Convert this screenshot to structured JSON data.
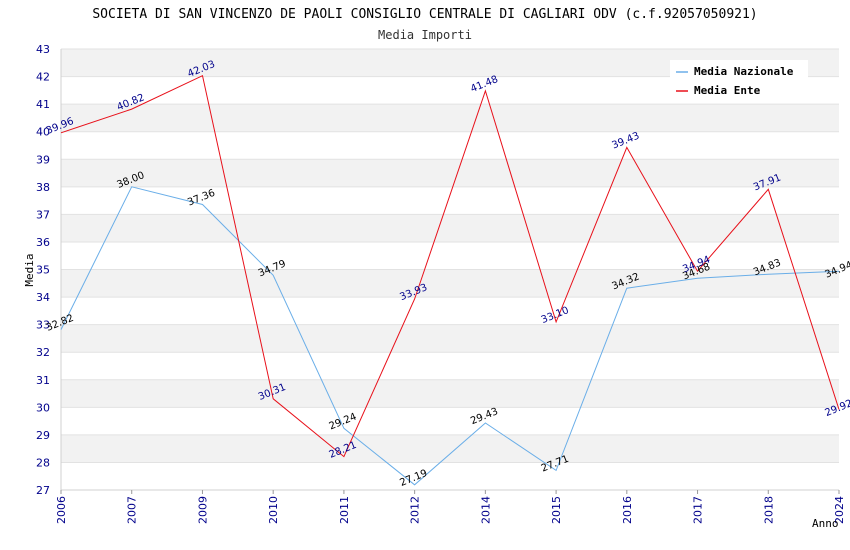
{
  "chart_data": {
    "type": "line",
    "title": "SOCIETA DI SAN VINCENZO DE PAOLI CONSIGLIO CENTRALE DI CAGLIARI ODV (c.f.92057050921)",
    "subtitle": "Media Importi",
    "xlabel": "Anno",
    "ylabel": "Media",
    "ylim": [
      27,
      43
    ],
    "yticks": [
      "27",
      "28",
      "29",
      "30",
      "31",
      "32",
      "33",
      "34",
      "35",
      "36",
      "37",
      "38",
      "39",
      "40",
      "41",
      "42",
      "43"
    ],
    "categories": [
      "2006",
      "2007",
      "2009",
      "2010",
      "2011",
      "2012",
      "2014",
      "2015",
      "2016",
      "2017",
      "2018",
      "2024"
    ],
    "grid": "horizontal bands",
    "legend_position": "top-right",
    "series": [
      {
        "name": "Media Nazionale",
        "color": "#6aaee8",
        "label_color": "#000000",
        "values": [
          32.82,
          38.0,
          37.36,
          34.79,
          29.24,
          27.19,
          29.43,
          27.71,
          34.32,
          34.68,
          34.83,
          34.94
        ],
        "labels": [
          "32.82",
          "38.00",
          "37.36",
          "34.79",
          "29.24",
          "27.19",
          "29.43",
          "27.71",
          "34.32",
          "34.68",
          "34.83",
          "34.94"
        ]
      },
      {
        "name": "Media Ente",
        "color": "#e8101a",
        "label_color": "#00008b",
        "values": [
          39.96,
          40.82,
          42.03,
          30.31,
          28.21,
          33.93,
          41.48,
          33.1,
          39.43,
          34.94,
          37.91,
          29.92
        ],
        "labels": [
          "39.96",
          "40.82",
          "42.03",
          "30.31",
          "28.21",
          "33.93",
          "41.48",
          "33.10",
          "39.43",
          "34.94",
          "37.91",
          "29.92"
        ]
      }
    ]
  }
}
